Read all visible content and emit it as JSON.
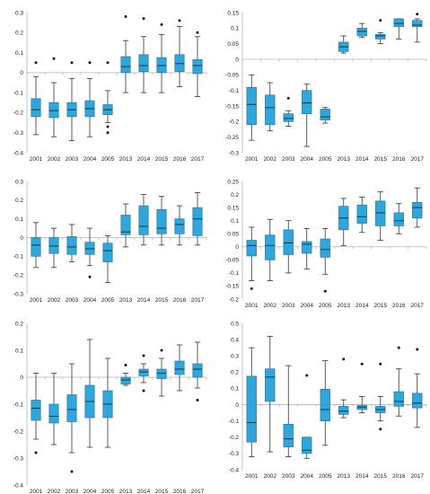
{
  "style": {
    "box_fill": "#2fa7dc",
    "box_stroke": "#1c6f93",
    "median_color": "#1a3f56",
    "axis_color": "#b5b5b5",
    "outlier_color": "#111111"
  },
  "chart_data": [
    {
      "type": "box",
      "ylim": [
        -0.4,
        0.3
      ],
      "yticks": [
        "0.3",
        "0.2",
        "0.1",
        "0",
        "-0.1",
        "-0.2",
        "-0.3",
        "-0.4"
      ],
      "ytick_values": [
        0.3,
        0.2,
        0.1,
        0,
        -0.1,
        -0.2,
        -0.3,
        -0.4
      ],
      "categories": [
        "2001",
        "2002",
        "2003",
        "2004",
        "2005",
        "2013",
        "2014",
        "2015",
        "2016",
        "2017"
      ],
      "boxes": [
        {
          "whisker_low": -0.31,
          "q1": -0.22,
          "median": -0.185,
          "q3": -0.13,
          "whisker_high": -0.02,
          "outliers": [
            0.05
          ]
        },
        {
          "whisker_low": -0.32,
          "q1": -0.225,
          "median": -0.19,
          "q3": -0.15,
          "whisker_high": -0.05,
          "outliers": [
            0.07
          ]
        },
        {
          "whisker_low": -0.34,
          "q1": -0.22,
          "median": -0.185,
          "q3": -0.15,
          "whisker_high": -0.03,
          "outliers": [
            0.05
          ]
        },
        {
          "whisker_low": -0.32,
          "q1": -0.22,
          "median": -0.18,
          "q3": -0.14,
          "whisker_high": -0.03,
          "outliers": [
            0.05
          ]
        },
        {
          "whisker_low": -0.25,
          "q1": -0.21,
          "median": -0.185,
          "q3": -0.16,
          "whisker_high": -0.09,
          "outliers": [
            -0.27,
            -0.3,
            0.05
          ]
        },
        {
          "whisker_low": -0.1,
          "q1": 0,
          "median": 0.03,
          "q3": 0.08,
          "whisker_high": 0.16,
          "outliers": [
            0.28
          ]
        },
        {
          "whisker_low": -0.1,
          "q1": 0.005,
          "median": 0.035,
          "q3": 0.09,
          "whisker_high": 0.18,
          "outliers": [
            0.27
          ]
        },
        {
          "whisker_low": -0.1,
          "q1": 0,
          "median": 0.035,
          "q3": 0.075,
          "whisker_high": 0.19,
          "outliers": [
            0.24
          ]
        },
        {
          "whisker_low": -0.07,
          "q1": 0.005,
          "median": 0.045,
          "q3": 0.09,
          "whisker_high": 0.23,
          "outliers": [
            0.26
          ]
        },
        {
          "whisker_low": -0.12,
          "q1": -0.005,
          "median": 0.035,
          "q3": 0.065,
          "whisker_high": 0.18,
          "outliers": [
            0.2
          ]
        }
      ]
    },
    {
      "type": "box",
      "ylim": [
        -0.3,
        0.15
      ],
      "yticks": [
        "0.15",
        "0.1",
        "0.05",
        "0",
        "-0.05",
        "-0.1",
        "-0.15",
        "-0.2",
        "-0.25",
        "-0.3"
      ],
      "ytick_values": [
        0.15,
        0.1,
        0.05,
        0,
        -0.05,
        -0.1,
        -0.15,
        -0.2,
        -0.25,
        -0.3
      ],
      "categories": [
        "2001",
        "2002",
        "2003",
        "2004",
        "2005",
        "2013",
        "2014",
        "2015",
        "2016",
        "2017"
      ],
      "boxes": [
        {
          "whisker_low": -0.26,
          "q1": -0.21,
          "median": -0.145,
          "q3": -0.09,
          "whisker_high": -0.05,
          "outliers": []
        },
        {
          "whisker_low": -0.23,
          "q1": -0.21,
          "median": -0.155,
          "q3": -0.115,
          "whisker_high": -0.075,
          "outliers": []
        },
        {
          "whisker_low": -0.215,
          "q1": -0.2,
          "median": -0.19,
          "q3": -0.175,
          "whisker_high": -0.165,
          "outliers": [
            -0.125
          ]
        },
        {
          "whisker_low": -0.28,
          "q1": -0.175,
          "median": -0.14,
          "q3": -0.1,
          "whisker_high": -0.08,
          "outliers": []
        },
        {
          "whisker_low": -0.205,
          "q1": -0.195,
          "median": -0.185,
          "q3": -0.16,
          "whisker_high": -0.155,
          "outliers": []
        },
        {
          "whisker_low": 0.02,
          "q1": 0.025,
          "median": 0.04,
          "q3": 0.055,
          "whisker_high": 0.075,
          "outliers": []
        },
        {
          "whisker_low": 0.07,
          "q1": 0.075,
          "median": 0.09,
          "q3": 0.1,
          "whisker_high": 0.115,
          "outliers": []
        },
        {
          "whisker_low": 0.05,
          "q1": 0.065,
          "median": 0.075,
          "q3": 0.08,
          "whisker_high": 0.085,
          "outliers": [
            0.125
          ]
        },
        {
          "whisker_low": 0.065,
          "q1": 0.105,
          "median": 0.115,
          "q3": 0.13,
          "whisker_high": 0.13,
          "outliers": []
        },
        {
          "whisker_low": 0.055,
          "q1": 0.105,
          "median": 0.11,
          "q3": 0.125,
          "whisker_high": 0.13,
          "outliers": [
            0.145
          ]
        }
      ]
    },
    {
      "type": "box",
      "ylim": [
        -0.3,
        0.3
      ],
      "yticks": [
        "0.3",
        "0.2",
        "0.1",
        "0",
        "-0.1",
        "-0.2",
        "-0.3"
      ],
      "ytick_values": [
        0.3,
        0.2,
        0.1,
        0,
        -0.1,
        -0.2,
        -0.3
      ],
      "categories": [
        "2001",
        "2002",
        "2003",
        "2004",
        "2005",
        "2013",
        "2014",
        "2015",
        "2016",
        "2017"
      ],
      "boxes": [
        {
          "whisker_low": -0.16,
          "q1": -0.1,
          "median": -0.04,
          "q3": 0,
          "whisker_high": 0.08,
          "outliers": []
        },
        {
          "whisker_low": -0.16,
          "q1": -0.085,
          "median": -0.045,
          "q3": 0,
          "whisker_high": 0.05,
          "outliers": []
        },
        {
          "whisker_low": -0.13,
          "q1": -0.09,
          "median": -0.05,
          "q3": 0.005,
          "whisker_high": 0.07,
          "outliers": []
        },
        {
          "whisker_low": -0.15,
          "q1": -0.09,
          "median": -0.06,
          "q3": -0.025,
          "whisker_high": 0.05,
          "outliers": [
            -0.21
          ]
        },
        {
          "whisker_low": -0.24,
          "q1": -0.13,
          "median": -0.07,
          "q3": -0.03,
          "whisker_high": 0.01,
          "outliers": []
        },
        {
          "whisker_low": -0.05,
          "q1": 0.015,
          "median": 0.03,
          "q3": 0.12,
          "whisker_high": 0.18,
          "outliers": []
        },
        {
          "whisker_low": -0.04,
          "q1": 0.015,
          "median": 0.06,
          "q3": 0.17,
          "whisker_high": 0.23,
          "outliers": []
        },
        {
          "whisker_low": -0.04,
          "q1": 0.02,
          "median": 0.05,
          "q3": 0.15,
          "whisker_high": 0.22,
          "outliers": []
        },
        {
          "whisker_low": -0.04,
          "q1": 0.02,
          "median": 0.07,
          "q3": 0.1,
          "whisker_high": 0.17,
          "outliers": []
        },
        {
          "whisker_low": -0.04,
          "q1": 0.01,
          "median": 0.1,
          "q3": 0.16,
          "whisker_high": 0.24,
          "outliers": []
        }
      ]
    },
    {
      "type": "box",
      "ylim": [
        -0.2,
        0.25
      ],
      "yticks": [
        "0.25",
        "0.2",
        "0.15",
        "0.1",
        "0.05",
        "0",
        "-0.05",
        "-0.1",
        "-0.15",
        "-0.2"
      ],
      "ytick_values": [
        0.25,
        0.2,
        0.15,
        0.1,
        0.05,
        0,
        -0.05,
        -0.1,
        -0.15,
        -0.2
      ],
      "categories": [
        "2001",
        "2002",
        "2003",
        "2004",
        "2005",
        "2013",
        "2014",
        "2015",
        "2016",
        "2017"
      ],
      "boxes": [
        {
          "whisker_low": -0.13,
          "q1": -0.035,
          "median": 0.005,
          "q3": 0.025,
          "whisker_high": 0.075,
          "outliers": [
            -0.16
          ]
        },
        {
          "whisker_low": -0.13,
          "q1": -0.05,
          "median": 0.005,
          "q3": 0.045,
          "whisker_high": 0.105,
          "outliers": []
        },
        {
          "whisker_low": -0.1,
          "q1": -0.03,
          "median": 0.015,
          "q3": 0.065,
          "whisker_high": 0.1,
          "outliers": []
        },
        {
          "whisker_low": -0.085,
          "q1": -0.025,
          "median": 0.01,
          "q3": 0.02,
          "whisker_high": 0.07,
          "outliers": []
        },
        {
          "whisker_low": -0.105,
          "q1": -0.04,
          "median": -0.01,
          "q3": 0.03,
          "whisker_high": 0.07,
          "outliers": [
            -0.17
          ]
        },
        {
          "whisker_low": 0.005,
          "q1": 0.065,
          "median": 0.11,
          "q3": 0.155,
          "whisker_high": 0.185,
          "outliers": []
        },
        {
          "whisker_low": 0.055,
          "q1": 0.09,
          "median": 0.115,
          "q3": 0.16,
          "whisker_high": 0.19,
          "outliers": []
        },
        {
          "whisker_low": 0.025,
          "q1": 0.08,
          "median": 0.13,
          "q3": 0.175,
          "whisker_high": 0.21,
          "outliers": []
        },
        {
          "whisker_low": 0.05,
          "q1": 0.08,
          "median": 0.1,
          "q3": 0.13,
          "whisker_high": 0.165,
          "outliers": []
        },
        {
          "whisker_low": 0.075,
          "q1": 0.11,
          "median": 0.15,
          "q3": 0.17,
          "whisker_high": 0.225,
          "outliers": []
        }
      ]
    },
    {
      "type": "box",
      "ylim": [
        -0.4,
        0.2
      ],
      "yticks": [
        "0.2",
        "0.1",
        "0",
        "-0.1",
        "-0.2",
        "-0.3",
        "-0.4"
      ],
      "ytick_values": [
        0.2,
        0.1,
        0,
        -0.1,
        -0.2,
        -0.3,
        -0.4
      ],
      "categories": [
        "2001",
        "2002",
        "2003",
        "2004",
        "2005",
        "2013",
        "2014",
        "2015",
        "2016",
        "2017"
      ],
      "boxes": [
        {
          "whisker_low": -0.23,
          "q1": -0.16,
          "median": -0.115,
          "q3": -0.085,
          "whisker_high": 0.015,
          "outliers": [
            -0.28
          ]
        },
        {
          "whisker_low": -0.25,
          "q1": -0.17,
          "median": -0.145,
          "q3": -0.1,
          "whisker_high": 0.015,
          "outliers": []
        },
        {
          "whisker_low": -0.28,
          "q1": -0.165,
          "median": -0.12,
          "q3": -0.065,
          "whisker_high": 0.05,
          "outliers": [
            -0.35
          ]
        },
        {
          "whisker_low": -0.26,
          "q1": -0.15,
          "median": -0.09,
          "q3": -0.03,
          "whisker_high": 0.14,
          "outliers": []
        },
        {
          "whisker_low": -0.26,
          "q1": -0.15,
          "median": -0.1,
          "q3": -0.05,
          "whisker_high": 0.07,
          "outliers": []
        },
        {
          "whisker_low": -0.03,
          "q1": -0.025,
          "median": -0.01,
          "q3": 0,
          "whisker_high": 0.015,
          "outliers": [
            0.045
          ]
        },
        {
          "whisker_low": -0.02,
          "q1": 0.005,
          "median": 0.02,
          "q3": 0.03,
          "whisker_high": 0.05,
          "outliers": [
            -0.05,
            0.08
          ]
        },
        {
          "whisker_low": -0.07,
          "q1": -0.005,
          "median": 0.015,
          "q3": 0.03,
          "whisker_high": 0.07,
          "outliers": [
            0.1
          ]
        },
        {
          "whisker_low": -0.05,
          "q1": 0.01,
          "median": 0.03,
          "q3": 0.06,
          "whisker_high": 0.12,
          "outliers": []
        },
        {
          "whisker_low": -0.04,
          "q1": 0,
          "median": 0.03,
          "q3": 0.05,
          "whisker_high": 0.13,
          "outliers": [
            -0.085
          ]
        }
      ]
    },
    {
      "type": "box",
      "ylim": [
        -0.4,
        0.5
      ],
      "yticks": [
        "0.5",
        "0.4",
        "0.3",
        "0.2",
        "0.1",
        "0",
        "-0.1",
        "-0.2",
        "-0.3",
        "-0.4"
      ],
      "ytick_values": [
        0.5,
        0.4,
        0.3,
        0.2,
        0.1,
        0,
        -0.1,
        -0.2,
        -0.3,
        -0.4
      ],
      "categories": [
        "2001",
        "2002",
        "2003",
        "2004",
        "2005",
        "2013",
        "2014",
        "2015",
        "2016",
        "2017"
      ],
      "boxes": [
        {
          "whisker_low": -0.32,
          "q1": -0.23,
          "median": -0.11,
          "q3": 0.175,
          "whisker_high": 0.35,
          "outliers": []
        },
        {
          "whisker_low": -0.29,
          "q1": 0.02,
          "median": 0.17,
          "q3": 0.22,
          "whisker_high": 0.42,
          "outliers": []
        },
        {
          "whisker_low": -0.32,
          "q1": -0.26,
          "median": -0.21,
          "q3": -0.12,
          "whisker_high": 0.24,
          "outliers": []
        },
        {
          "whisker_low": -0.33,
          "q1": -0.3,
          "median": -0.28,
          "q3": -0.2,
          "whisker_high": -0.2,
          "outliers": [
            0.18
          ]
        },
        {
          "whisker_low": -0.25,
          "q1": -0.1,
          "median": -0.03,
          "q3": 0.095,
          "whisker_high": 0.27,
          "outliers": []
        },
        {
          "whisker_low": -0.08,
          "q1": -0.06,
          "median": -0.04,
          "q3": -0.01,
          "whisker_high": 0.03,
          "outliers": [
            0.28
          ]
        },
        {
          "whisker_low": -0.05,
          "q1": -0.03,
          "median": -0.015,
          "q3": -0.005,
          "whisker_high": 0.05,
          "outliers": [
            0.25
          ]
        },
        {
          "whisker_low": -0.1,
          "q1": -0.05,
          "median": -0.03,
          "q3": -0.01,
          "whisker_high": 0.05,
          "outliers": [
            -0.15,
            0.25
          ]
        },
        {
          "whisker_low": -0.07,
          "q1": -0.01,
          "median": 0.02,
          "q3": 0.08,
          "whisker_high": 0.22,
          "outliers": [
            0.35
          ]
        },
        {
          "whisker_low": -0.14,
          "q1": -0.02,
          "median": 0.01,
          "q3": 0.07,
          "whisker_high": 0.19,
          "outliers": [
            0.34
          ]
        }
      ]
    }
  ]
}
